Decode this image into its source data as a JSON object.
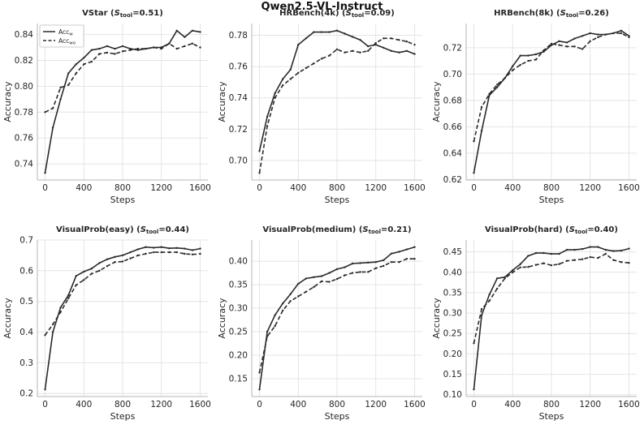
{
  "figure": {
    "title": "Qwen2.5-VL-Instruct",
    "xlabel": "Steps",
    "ylabel": "Accuracy",
    "colors": {
      "line": "#2a2a2a",
      "grid": "#e4e4e4",
      "spine": "#b5b5b5",
      "text": "#262626",
      "legend_border": "#cccccc",
      "background": "#ffffff"
    },
    "legend": {
      "items": [
        {
          "label": "Acc",
          "sub": "w",
          "dash": false
        },
        {
          "label": "Acc",
          "sub": "wo",
          "dash": true
        }
      ]
    }
  },
  "chart_data": [
    {
      "type": "line",
      "title": {
        "name": "VStar",
        "s": "S",
        "s_sub": "tool",
        "s_val": "0.51"
      },
      "xlabel": "Steps",
      "ylabel": "Accuracy",
      "x": [
        0,
        80,
        160,
        240,
        320,
        400,
        480,
        560,
        640,
        720,
        800,
        880,
        960,
        1040,
        1120,
        1200,
        1280,
        1360,
        1440,
        1520,
        1600
      ],
      "series": [
        {
          "name": "Acc_w",
          "dash": false,
          "values": [
            0.733,
            0.768,
            0.79,
            0.81,
            0.817,
            0.822,
            0.828,
            0.829,
            0.831,
            0.829,
            0.831,
            0.829,
            0.828,
            0.829,
            0.83,
            0.83,
            0.833,
            0.843,
            0.838,
            0.843,
            0.842
          ]
        },
        {
          "name": "Acc_wo",
          "dash": true,
          "values": [
            0.78,
            0.783,
            0.799,
            0.801,
            0.81,
            0.817,
            0.819,
            0.825,
            0.826,
            0.825,
            0.827,
            0.828,
            0.829,
            0.829,
            0.83,
            0.829,
            0.833,
            0.829,
            0.831,
            0.833,
            0.83
          ]
        }
      ],
      "xlim": [
        -80,
        1680
      ],
      "ylim": [
        0.7275,
        0.8485
      ],
      "xticks": [
        "0",
        "400",
        "800",
        "1200",
        "1600"
      ],
      "yticks": [
        "0.74",
        "0.76",
        "0.78",
        "0.80",
        "0.82",
        "0.84"
      ],
      "legend": true
    },
    {
      "type": "line",
      "title": {
        "name": "HRBench(4k)",
        "s": "S",
        "s_sub": "tool",
        "s_val": "0.09"
      },
      "xlabel": "Steps",
      "ylabel": "Accuracy",
      "x": [
        0,
        80,
        160,
        240,
        320,
        400,
        480,
        560,
        640,
        720,
        800,
        880,
        960,
        1040,
        1120,
        1200,
        1280,
        1360,
        1440,
        1520,
        1600
      ],
      "series": [
        {
          "name": "Acc_w",
          "dash": false,
          "values": [
            0.706,
            0.728,
            0.743,
            0.752,
            0.758,
            0.774,
            0.778,
            0.782,
            0.782,
            0.782,
            0.783,
            0.781,
            0.779,
            0.777,
            0.773,
            0.774,
            0.772,
            0.77,
            0.769,
            0.77,
            0.768
          ]
        },
        {
          "name": "Acc_wo",
          "dash": true,
          "values": [
            0.692,
            0.722,
            0.74,
            0.748,
            0.752,
            0.756,
            0.759,
            0.762,
            0.765,
            0.767,
            0.771,
            0.769,
            0.77,
            0.769,
            0.77,
            0.775,
            0.778,
            0.778,
            0.777,
            0.776,
            0.774
          ]
        }
      ],
      "xlim": [
        -80,
        1680
      ],
      "ylim": [
        0.6875,
        0.7875
      ],
      "xticks": [
        "0",
        "400",
        "800",
        "1200",
        "1600"
      ],
      "yticks": [
        "0.70",
        "0.72",
        "0.74",
        "0.76",
        "0.78"
      ],
      "legend": false
    },
    {
      "type": "line",
      "title": {
        "name": "HRBench(8k)",
        "s": "S",
        "s_sub": "tool",
        "s_val": "0.26"
      },
      "xlabel": "Steps",
      "ylabel": "Accuracy",
      "x": [
        0,
        80,
        160,
        240,
        320,
        400,
        480,
        560,
        640,
        720,
        800,
        880,
        960,
        1040,
        1120,
        1200,
        1280,
        1360,
        1440,
        1520,
        1600
      ],
      "series": [
        {
          "name": "Acc_w",
          "dash": false,
          "values": [
            0.625,
            0.657,
            0.684,
            0.69,
            0.697,
            0.706,
            0.714,
            0.714,
            0.715,
            0.717,
            0.722,
            0.725,
            0.724,
            0.727,
            0.729,
            0.731,
            0.73,
            0.73,
            0.731,
            0.733,
            0.729
          ]
        },
        {
          "name": "Acc_wo",
          "dash": true,
          "values": [
            0.649,
            0.675,
            0.685,
            0.692,
            0.697,
            0.703,
            0.707,
            0.71,
            0.711,
            0.718,
            0.723,
            0.722,
            0.721,
            0.721,
            0.719,
            0.725,
            0.728,
            0.73,
            0.731,
            0.731,
            0.728
          ]
        }
      ],
      "xlim": [
        -80,
        1680
      ],
      "ylim": [
        0.6196,
        0.7384
      ],
      "xticks": [
        "0",
        "400",
        "800",
        "1200",
        "1600"
      ],
      "yticks": [
        "0.62",
        "0.64",
        "0.66",
        "0.68",
        "0.70",
        "0.72"
      ],
      "legend": false
    },
    {
      "type": "line",
      "title": {
        "name": "VisualProb(easy)",
        "s": "S",
        "s_sub": "tool",
        "s_val": "0.44"
      },
      "xlabel": "Steps",
      "ylabel": "Accuracy",
      "x": [
        0,
        80,
        160,
        240,
        320,
        400,
        480,
        560,
        640,
        720,
        800,
        880,
        960,
        1040,
        1120,
        1200,
        1280,
        1360,
        1440,
        1520,
        1600
      ],
      "series": [
        {
          "name": "Acc_w",
          "dash": false,
          "values": [
            0.213,
            0.4,
            0.48,
            0.52,
            0.583,
            0.597,
            0.607,
            0.625,
            0.637,
            0.645,
            0.65,
            0.66,
            0.67,
            0.677,
            0.675,
            0.677,
            0.673,
            0.674,
            0.672,
            0.667,
            0.672
          ]
        },
        {
          "name": "Acc_wo",
          "dash": true,
          "values": [
            0.39,
            0.425,
            0.465,
            0.51,
            0.553,
            0.57,
            0.59,
            0.6,
            0.615,
            0.628,
            0.63,
            0.64,
            0.65,
            0.655,
            0.66,
            0.66,
            0.66,
            0.66,
            0.655,
            0.653,
            0.655
          ]
        }
      ],
      "xlim": [
        -80,
        1680
      ],
      "ylim": [
        0.19,
        0.7
      ],
      "xticks": [
        "0",
        "400",
        "800",
        "1200",
        "1600"
      ],
      "yticks": [
        "0.2",
        "0.3",
        "0.4",
        "0.5",
        "0.6",
        "0.7"
      ],
      "legend": false
    },
    {
      "type": "line",
      "title": {
        "name": "VisualProb(medium)",
        "s": "S",
        "s_sub": "tool",
        "s_val": "0.21"
      },
      "xlabel": "Steps",
      "ylabel": "Accuracy",
      "x": [
        0,
        80,
        160,
        240,
        320,
        400,
        480,
        560,
        640,
        720,
        800,
        880,
        960,
        1040,
        1120,
        1200,
        1280,
        1360,
        1440,
        1520,
        1600
      ],
      "series": [
        {
          "name": "Acc_w",
          "dash": false,
          "values": [
            0.127,
            0.25,
            0.285,
            0.31,
            0.33,
            0.352,
            0.363,
            0.366,
            0.368,
            0.375,
            0.383,
            0.387,
            0.395,
            0.396,
            0.397,
            0.398,
            0.402,
            0.416,
            0.42,
            0.425,
            0.43
          ]
        },
        {
          "name": "Acc_wo",
          "dash": true,
          "values": [
            0.163,
            0.24,
            0.262,
            0.295,
            0.315,
            0.325,
            0.335,
            0.345,
            0.357,
            0.356,
            0.362,
            0.37,
            0.375,
            0.377,
            0.377,
            0.385,
            0.39,
            0.398,
            0.398,
            0.405,
            0.405
          ]
        }
      ],
      "xlim": [
        -80,
        1680
      ],
      "ylim": [
        0.112,
        0.445
      ],
      "xticks": [
        "0",
        "400",
        "800",
        "1200",
        "1600"
      ],
      "yticks": [
        "0.15",
        "0.20",
        "0.25",
        "0.30",
        "0.35",
        "0.40"
      ],
      "legend": false
    },
    {
      "type": "line",
      "title": {
        "name": "VisualProb(hard)",
        "s": "S",
        "s_sub": "tool",
        "s_val": "0.40"
      },
      "xlabel": "Steps",
      "ylabel": "Accuracy",
      "x": [
        0,
        80,
        160,
        240,
        320,
        400,
        480,
        560,
        640,
        720,
        800,
        880,
        960,
        1040,
        1120,
        1200,
        1280,
        1360,
        1440,
        1520,
        1600
      ],
      "series": [
        {
          "name": "Acc_w",
          "dash": false,
          "values": [
            0.113,
            0.295,
            0.345,
            0.385,
            0.388,
            0.405,
            0.42,
            0.44,
            0.447,
            0.447,
            0.445,
            0.445,
            0.455,
            0.455,
            0.457,
            0.462,
            0.462,
            0.455,
            0.452,
            0.453,
            0.458
          ]
        },
        {
          "name": "Acc_wo",
          "dash": true,
          "values": [
            0.226,
            0.31,
            0.33,
            0.36,
            0.385,
            0.4,
            0.412,
            0.413,
            0.418,
            0.422,
            0.417,
            0.42,
            0.428,
            0.43,
            0.432,
            0.437,
            0.435,
            0.445,
            0.43,
            0.425,
            0.423
          ]
        }
      ],
      "xlim": [
        -80,
        1680
      ],
      "ylim": [
        0.0955,
        0.479
      ],
      "xticks": [
        "0",
        "400",
        "800",
        "1200",
        "1600"
      ],
      "yticks": [
        "0.10",
        "0.15",
        "0.20",
        "0.25",
        "0.30",
        "0.35",
        "0.40",
        "0.45"
      ],
      "legend": false
    }
  ]
}
